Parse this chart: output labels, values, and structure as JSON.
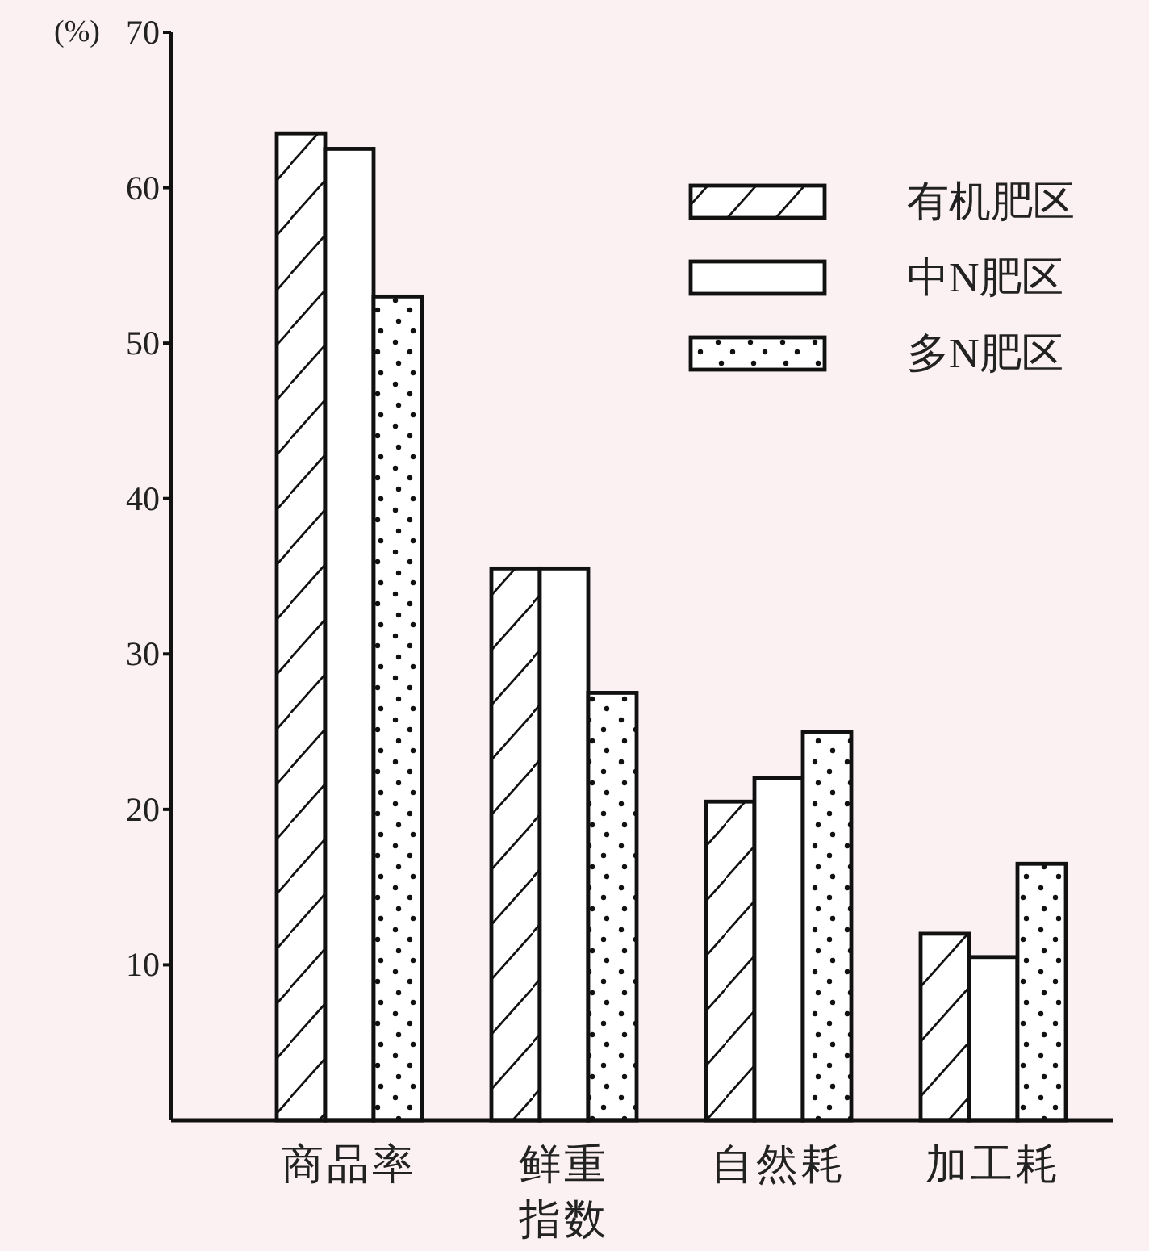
{
  "chart_data": {
    "type": "bar",
    "ylabel": "(%)",
    "categories": [
      "商品率",
      "鲜重指数",
      "自然耗",
      "加工耗"
    ],
    "series": [
      {
        "name": "有机肥区",
        "color": "#111111",
        "values": [
          63.5,
          35.5,
          20.5,
          12
        ]
      },
      {
        "name": "中N肥区",
        "color": "#111111",
        "values": [
          62.5,
          35.5,
          22,
          10.5
        ]
      },
      {
        "name": "多N肥区",
        "color": "#111111",
        "values": [
          53,
          27.5,
          25,
          16.5
        ]
      }
    ],
    "ylim": [
      0,
      70
    ],
    "yticks": [
      10,
      20,
      30,
      40,
      50,
      60,
      70
    ],
    "legend": "top right",
    "grid": false
  }
}
